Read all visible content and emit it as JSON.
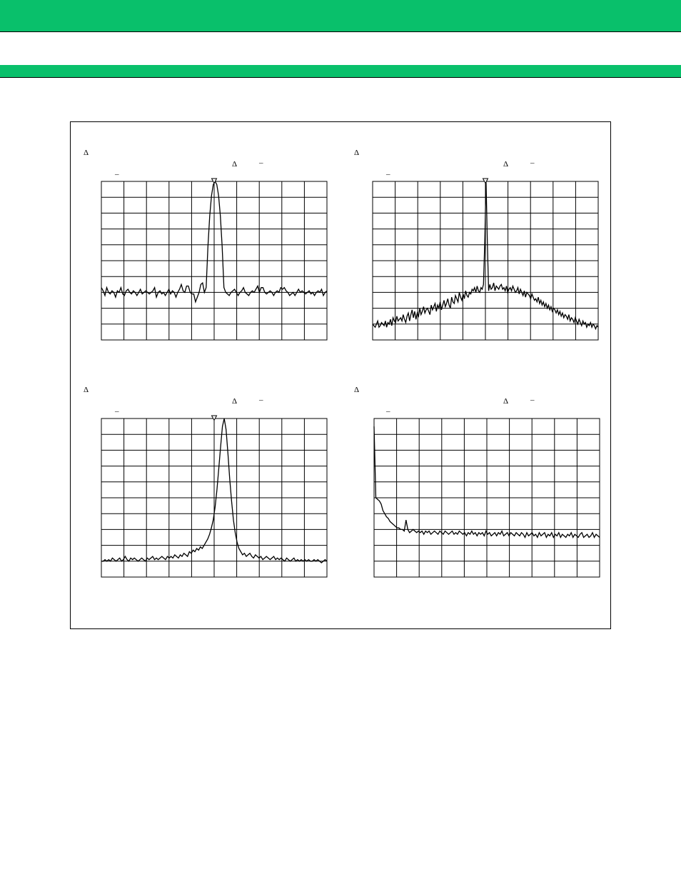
{
  "colors": {
    "header_band": "#09c06b",
    "grid": "#000000",
    "trace": "#000000"
  },
  "panels": [
    {
      "delta_top": "Δ",
      "delta_marker": "Δ",
      "dash_marker": "–",
      "dash_ref": "–",
      "marker_icon": "marker-triangle-icon",
      "trace": [
        0.33,
        0.31,
        0.28,
        0.33,
        0.3,
        0.29,
        0.31,
        0.3,
        0.27,
        0.31,
        0.3,
        0.33,
        0.29,
        0.28,
        0.31,
        0.32,
        0.3,
        0.29,
        0.31,
        0.3,
        0.28,
        0.3,
        0.32,
        0.29,
        0.3,
        0.31,
        0.3,
        0.29,
        0.3,
        0.31,
        0.33,
        0.27,
        0.3,
        0.31,
        0.29,
        0.3,
        0.28,
        0.3,
        0.32,
        0.29,
        0.31,
        0.3,
        0.27,
        0.3,
        0.32,
        0.35,
        0.31,
        0.3,
        0.34,
        0.34,
        0.3,
        0.29,
        0.29,
        0.24,
        0.27,
        0.3,
        0.35,
        0.36,
        0.3,
        0.33,
        0.33,
        0.31,
        0.29,
        0.3,
        0.27,
        0.28,
        0.3,
        0.31,
        0.32,
        0.33,
        0.3,
        0.29,
        0.28,
        0.3,
        0.31,
        0.32,
        0.3,
        0.28,
        0.3,
        0.31,
        0.33,
        0.3,
        0.29,
        0.28,
        0.3,
        0.31,
        0.3,
        0.32,
        0.34,
        0.3,
        0.33,
        0.33,
        0.3,
        0.29,
        0.3,
        0.31,
        0.3,
        0.28,
        0.3,
        0.31,
        0.3,
        0.33,
        0.32,
        0.33,
        0.31,
        0.3,
        0.28,
        0.29,
        0.3,
        0.28,
        0.3,
        0.32,
        0.3,
        0.31,
        0.3,
        0.29,
        0.3,
        0.31,
        0.29,
        0.3,
        0.28,
        0.3,
        0.31,
        0.3,
        0.32,
        0.28,
        0.3,
        0.31
      ],
      "trace_step": 0.78,
      "peak": 0.5
    },
    {
      "delta_top": "Δ",
      "delta_marker": "Δ",
      "dash_marker": "–",
      "dash_ref": "–",
      "marker_icon": "marker-triangle-icon",
      "trace": [
        0.1,
        0.09,
        0.08,
        0.1,
        0.12,
        0.08,
        0.09,
        0.11,
        0.1,
        0.09,
        0.12,
        0.08,
        0.11,
        0.1,
        0.13,
        0.09,
        0.14,
        0.12,
        0.11,
        0.15,
        0.12,
        0.13,
        0.14,
        0.12,
        0.16,
        0.13,
        0.11,
        0.15,
        0.17,
        0.12,
        0.16,
        0.19,
        0.14,
        0.18,
        0.13,
        0.17,
        0.15,
        0.2,
        0.16,
        0.18,
        0.21,
        0.17,
        0.19,
        0.2,
        0.18,
        0.16,
        0.22,
        0.19,
        0.21,
        0.23,
        0.18,
        0.22,
        0.2,
        0.24,
        0.19,
        0.22,
        0.25,
        0.21,
        0.23,
        0.26,
        0.22,
        0.2,
        0.27,
        0.24,
        0.23,
        0.28,
        0.26,
        0.24,
        0.3,
        0.27,
        0.25,
        0.29,
        0.26,
        0.31,
        0.28,
        0.27,
        0.3,
        0.29,
        0.32,
        0.31,
        0.33,
        0.3,
        0.34,
        0.31,
        0.3,
        0.33,
        0.32,
        0.35,
        0.33,
        0.32,
        0.34,
        0.31,
        0.35,
        0.32,
        0.33,
        0.36,
        0.31,
        0.34,
        0.33,
        0.32,
        0.34,
        0.35,
        0.32,
        0.33,
        0.31,
        0.34,
        0.3,
        0.32,
        0.33,
        0.31,
        0.34,
        0.32,
        0.3,
        0.31,
        0.33,
        0.29,
        0.32,
        0.3,
        0.28,
        0.31,
        0.27,
        0.3,
        0.29,
        0.28,
        0.26,
        0.29,
        0.27,
        0.25,
        0.26,
        0.24,
        0.27,
        0.23,
        0.25,
        0.22,
        0.24,
        0.21,
        0.23,
        0.2,
        0.22,
        0.19,
        0.21,
        0.18,
        0.2,
        0.19,
        0.17,
        0.19,
        0.16,
        0.18,
        0.15,
        0.17,
        0.14,
        0.16,
        0.15,
        0.13,
        0.16,
        0.12,
        0.14,
        0.13,
        0.11,
        0.14,
        0.12,
        0.1,
        0.13,
        0.11,
        0.09,
        0.12,
        0.1,
        0.11,
        0.08,
        0.1,
        0.09,
        0.11,
        0.08,
        0.1,
        0.09,
        0.07,
        0.09,
        0.08
      ],
      "trace_step": 0.55,
      "peak": 0.5
    },
    {
      "delta_top": "Δ",
      "delta_marker": "Δ",
      "dash_marker": "–",
      "dash_ref": "–",
      "marker_icon": "marker-triangle-icon",
      "trace": [
        0.1,
        0.1,
        0.11,
        0.1,
        0.11,
        0.1,
        0.12,
        0.11,
        0.1,
        0.11,
        0.12,
        0.1,
        0.11,
        0.13,
        0.11,
        0.1,
        0.12,
        0.11,
        0.12,
        0.11,
        0.1,
        0.11,
        0.12,
        0.11,
        0.1,
        0.12,
        0.11,
        0.12,
        0.13,
        0.11,
        0.12,
        0.11,
        0.12,
        0.13,
        0.12,
        0.11,
        0.13,
        0.12,
        0.13,
        0.12,
        0.14,
        0.13,
        0.12,
        0.14,
        0.13,
        0.15,
        0.14,
        0.13,
        0.16,
        0.15,
        0.17,
        0.16,
        0.18,
        0.17,
        0.19,
        0.18,
        0.2,
        0.22,
        0.24,
        0.27,
        0.31,
        0.36,
        0.44,
        0.55,
        0.68,
        0.82,
        0.95,
        1.0,
        0.93,
        0.78,
        0.62,
        0.48,
        0.36,
        0.28,
        0.22,
        0.18,
        0.16,
        0.14,
        0.15,
        0.13,
        0.14,
        0.15,
        0.13,
        0.12,
        0.14,
        0.13,
        0.12,
        0.13,
        0.11,
        0.12,
        0.13,
        0.12,
        0.11,
        0.12,
        0.13,
        0.11,
        0.12,
        0.11,
        0.12,
        0.11,
        0.1,
        0.12,
        0.11,
        0.1,
        0.11,
        0.12,
        0.1,
        0.11,
        0.1,
        0.11,
        0.1,
        0.11,
        0.1,
        0.11,
        0.1,
        0.1,
        0.11,
        0.1,
        0.11,
        0.1,
        0.09,
        0.1,
        0.11,
        0.1
      ],
      "trace_step": 0.8,
      "peak": 0.5
    },
    {
      "delta_top": "Δ",
      "delta_marker": "Δ",
      "dash_marker": "–",
      "dash_ref": "–",
      "trace": [
        0.95,
        0.5,
        0.49,
        0.48,
        0.46,
        0.42,
        0.4,
        0.38,
        0.37,
        0.35,
        0.34,
        0.33,
        0.32,
        0.31,
        0.31,
        0.3,
        0.3,
        0.29,
        0.29,
        0.3,
        0.28,
        0.29,
        0.3,
        0.29,
        0.28,
        0.29,
        0.28,
        0.29,
        0.27,
        0.29,
        0.28,
        0.29,
        0.27,
        0.28,
        0.29,
        0.28,
        0.27,
        0.29,
        0.28,
        0.27,
        0.29,
        0.28,
        0.27,
        0.28,
        0.29,
        0.27,
        0.28,
        0.27,
        0.29,
        0.28,
        0.27,
        0.28,
        0.26,
        0.28,
        0.27,
        0.29,
        0.27,
        0.28,
        0.26,
        0.28,
        0.27,
        0.28,
        0.26,
        0.29,
        0.27,
        0.28,
        0.26,
        0.27,
        0.28,
        0.26,
        0.28,
        0.27,
        0.29,
        0.26,
        0.27,
        0.28,
        0.26,
        0.28,
        0.27,
        0.26,
        0.28,
        0.27,
        0.26,
        0.28,
        0.27,
        0.25,
        0.28,
        0.26,
        0.27,
        0.28,
        0.26,
        0.27,
        0.25,
        0.28,
        0.26,
        0.27,
        0.28,
        0.25,
        0.27,
        0.26,
        0.28,
        0.25,
        0.27,
        0.26,
        0.28,
        0.25,
        0.27,
        0.26,
        0.25,
        0.27,
        0.26,
        0.28,
        0.25,
        0.27,
        0.26,
        0.25,
        0.27,
        0.28,
        0.25,
        0.26,
        0.27,
        0.25,
        0.26,
        0.28,
        0.25,
        0.27,
        0.26,
        0.25
      ],
      "trace_step": 0.79,
      "spur_at": 0.14
    }
  ]
}
